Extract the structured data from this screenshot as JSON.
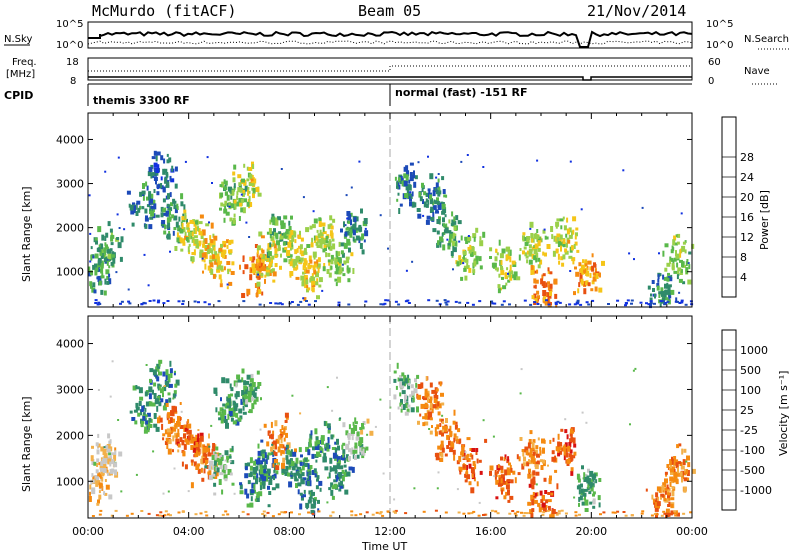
{
  "header": {
    "station": "McMurdo (fitACF)",
    "beam": "Beam 05",
    "date": "21/Nov/2014"
  },
  "aux_panels": {
    "nsky": {
      "label": "N.Sky",
      "ticks": [
        "10^5",
        "10^0"
      ],
      "right_ticks": [
        "10^5",
        "10^0"
      ],
      "right_label": "N.Search"
    },
    "freq": {
      "label": "Freq.",
      "unit": "[MHz]",
      "ticks": [
        "18",
        "8"
      ],
      "right_ticks": [
        "60",
        "0"
      ],
      "right_label": "Nave"
    },
    "cpid": {
      "label": "CPID",
      "segments": [
        {
          "text": "themis 3300 RF",
          "start_h": 0.0,
          "end_h": 12.0
        },
        {
          "text": "normal (fast) -151 RF",
          "start_h": 12.0,
          "end_h": 24.0
        }
      ]
    }
  },
  "chart_data": [
    {
      "type": "heatmap",
      "name": "power",
      "ylabel": "Slant Range [km]",
      "yticks": [
        "1000",
        "2000",
        "3000",
        "4000"
      ],
      "ylim": [
        200,
        4600
      ],
      "xlim": [
        0,
        24
      ],
      "colorbar": {
        "label": "Power [dB]",
        "ticks": [
          "4",
          "8",
          "12",
          "16",
          "20",
          "24",
          "28"
        ],
        "colors": [
          "#1030e0",
          "#1c4ab8",
          "#2f8a6a",
          "#59b84a",
          "#9ad04a",
          "#f5c518",
          "#f58a10",
          "#e85010",
          "#d81010"
        ]
      },
      "clusters": [
        {
          "t": 0.3,
          "r": 1000,
          "level": 0.3
        },
        {
          "t": 0.7,
          "r": 1550,
          "level": 0.35
        },
        {
          "t": 2.2,
          "r": 2500,
          "level": 0.25
        },
        {
          "t": 2.9,
          "r": 3150,
          "level": 0.2
        },
        {
          "t": 3.3,
          "r": 2200,
          "level": 0.3
        },
        {
          "t": 4.0,
          "r": 1800,
          "level": 0.55
        },
        {
          "t": 4.6,
          "r": 1500,
          "level": 0.6
        },
        {
          "t": 5.2,
          "r": 1250,
          "level": 0.65
        },
        {
          "t": 5.6,
          "r": 2600,
          "level": 0.4
        },
        {
          "t": 6.3,
          "r": 2900,
          "level": 0.55
        },
        {
          "t": 6.6,
          "r": 1000,
          "level": 0.75
        },
        {
          "t": 7.1,
          "r": 1300,
          "level": 0.6
        },
        {
          "t": 7.6,
          "r": 1850,
          "level": 0.4
        },
        {
          "t": 8.2,
          "r": 1400,
          "level": 0.55
        },
        {
          "t": 8.8,
          "r": 900,
          "level": 0.6
        },
        {
          "t": 9.3,
          "r": 1750,
          "level": 0.5
        },
        {
          "t": 9.9,
          "r": 1250,
          "level": 0.45
        },
        {
          "t": 10.6,
          "r": 1900,
          "level": 0.3
        },
        {
          "t": 12.6,
          "r": 2950,
          "level": 0.25
        },
        {
          "t": 13.6,
          "r": 2700,
          "level": 0.25
        },
        {
          "t": 14.2,
          "r": 1950,
          "level": 0.35
        },
        {
          "t": 15.1,
          "r": 1400,
          "level": 0.45
        },
        {
          "t": 16.5,
          "r": 1100,
          "level": 0.5
        },
        {
          "t": 17.7,
          "r": 1550,
          "level": 0.5
        },
        {
          "t": 18.0,
          "r": 550,
          "level": 0.75
        },
        {
          "t": 18.9,
          "r": 1700,
          "level": 0.55
        },
        {
          "t": 19.8,
          "r": 900,
          "level": 0.7
        },
        {
          "t": 22.8,
          "r": 550,
          "level": 0.3
        },
        {
          "t": 23.4,
          "r": 1300,
          "level": 0.45
        }
      ]
    },
    {
      "type": "heatmap",
      "name": "velocity",
      "ylabel": "Slant Range [km]",
      "yticks": [
        "1000",
        "2000",
        "3000",
        "4000"
      ],
      "ylim": [
        200,
        4600
      ],
      "xlim": [
        0,
        24
      ],
      "xticks": [
        "00:00",
        "04:00",
        "08:00",
        "12:00",
        "16:00",
        "20:00",
        "00:00"
      ],
      "xlabel": "Time UT",
      "colorbar": {
        "label": "Velocity [m s⁻¹]",
        "ticks": [
          "-1000",
          "-500",
          "-100",
          "-25",
          "25",
          "100",
          "500",
          "1000"
        ],
        "colors": [
          "#d81010",
          "#e85010",
          "#f58a10",
          "#f2b04a",
          "#c8c8c8",
          "#59b84a",
          "#2f8a6a",
          "#1c4ab8",
          "#1030e0"
        ]
      },
      "clusters": [
        {
          "t": 0.3,
          "r": 1000,
          "level": 0.4
        },
        {
          "t": 0.7,
          "r": 1550,
          "level": 0.45
        },
        {
          "t": 2.2,
          "r": 2500,
          "level": 0.7
        },
        {
          "t": 2.9,
          "r": 3150,
          "level": 0.7
        },
        {
          "t": 3.3,
          "r": 2200,
          "level": 0.25
        },
        {
          "t": 4.0,
          "r": 1800,
          "level": 0.2
        },
        {
          "t": 4.6,
          "r": 1500,
          "level": 0.25
        },
        {
          "t": 5.2,
          "r": 1250,
          "level": 0.6
        },
        {
          "t": 5.6,
          "r": 2600,
          "level": 0.7
        },
        {
          "t": 6.3,
          "r": 2900,
          "level": 0.65
        },
        {
          "t": 6.6,
          "r": 1000,
          "level": 0.7
        },
        {
          "t": 7.1,
          "r": 1300,
          "level": 0.75
        },
        {
          "t": 7.6,
          "r": 1850,
          "level": 0.25
        },
        {
          "t": 8.2,
          "r": 1400,
          "level": 0.7
        },
        {
          "t": 8.8,
          "r": 900,
          "level": 0.75
        },
        {
          "t": 9.3,
          "r": 1750,
          "level": 0.7
        },
        {
          "t": 9.9,
          "r": 1250,
          "level": 0.7
        },
        {
          "t": 10.6,
          "r": 1900,
          "level": 0.55
        },
        {
          "t": 12.6,
          "r": 2950,
          "level": 0.6
        },
        {
          "t": 13.6,
          "r": 2700,
          "level": 0.25
        },
        {
          "t": 14.2,
          "r": 1950,
          "level": 0.25
        },
        {
          "t": 15.1,
          "r": 1400,
          "level": 0.2
        },
        {
          "t": 16.5,
          "r": 1100,
          "level": 0.2
        },
        {
          "t": 17.7,
          "r": 1550,
          "level": 0.25
        },
        {
          "t": 18.0,
          "r": 550,
          "level": 0.2
        },
        {
          "t": 18.9,
          "r": 1700,
          "level": 0.2
        },
        {
          "t": 19.8,
          "r": 900,
          "level": 0.65
        },
        {
          "t": 22.8,
          "r": 550,
          "level": 0.25
        },
        {
          "t": 23.4,
          "r": 1300,
          "level": 0.3
        }
      ]
    }
  ]
}
